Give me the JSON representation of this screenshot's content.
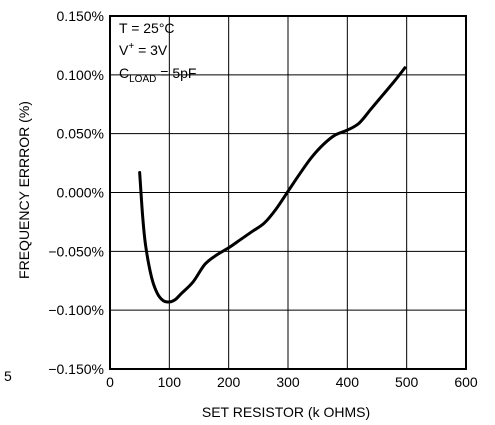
{
  "chart_data": {
    "type": "line",
    "title": "",
    "xlabel": "SET RESISTOR (k OHMS)",
    "ylabel": "FREQUENCY ERRROR (%)",
    "xlim": [
      0,
      600
    ],
    "ylim": [
      -0.15,
      0.15
    ],
    "grid": true,
    "x_ticks": [
      "0",
      "100",
      "200",
      "300",
      "400",
      "500",
      "600"
    ],
    "y_ticks": [
      "0.150%",
      "0.100%",
      "0.050%",
      "0.000%",
      "−0.050%",
      "−0.100%",
      "−0.150%"
    ],
    "annotations": {
      "temp": "T = 25°C",
      "v_main": "V",
      "v_sup": "+",
      "v_rest": " = 3V",
      "c_main": "C",
      "c_sub": "LOAD",
      "c_rest": " = 5pF"
    },
    "stray_label": "5",
    "series": [
      {
        "x": [
          50,
          55,
          60,
          70,
          80,
          90,
          100,
          110,
          120,
          140,
          160,
          180,
          200,
          220,
          240,
          260,
          280,
          300,
          320,
          340,
          360,
          380,
          400,
          420,
          440,
          460,
          480,
          497
        ],
        "values": [
          0.017,
          -0.02,
          -0.045,
          -0.072,
          -0.086,
          -0.092,
          -0.093,
          -0.091,
          -0.086,
          -0.076,
          -0.061,
          -0.053,
          -0.047,
          -0.04,
          -0.033,
          -0.026,
          -0.014,
          0.001,
          0.016,
          0.03,
          0.041,
          0.049,
          0.053,
          0.059,
          0.071,
          0.083,
          0.095,
          0.106
        ]
      }
    ]
  }
}
